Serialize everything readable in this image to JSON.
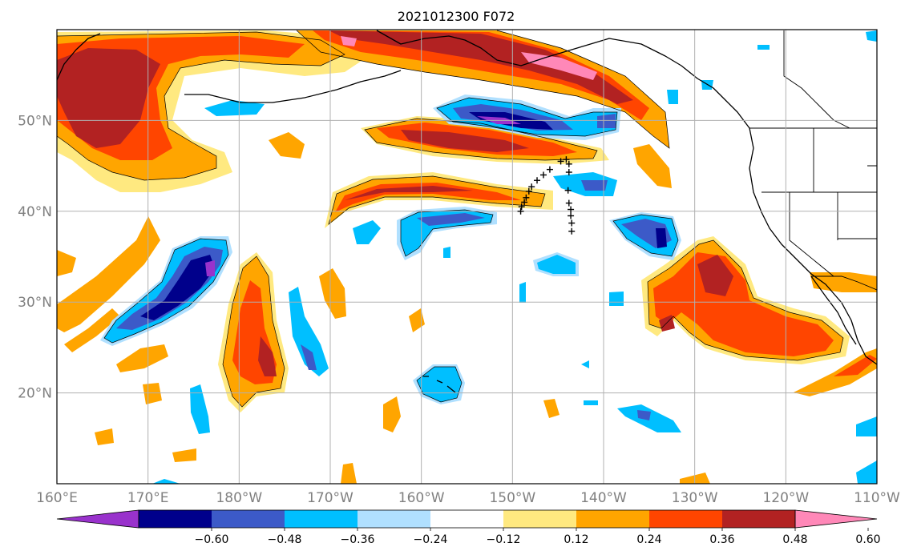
{
  "title": "2021012300 F072",
  "lat_labels": [
    {
      "lat": 50,
      "text": "50°N"
    },
    {
      "lat": 40,
      "text": "40°N"
    },
    {
      "lat": 30,
      "text": "30°N"
    },
    {
      "lat": 20,
      "text": "20°N"
    }
  ],
  "lon_labels": [
    {
      "lon": 160,
      "text": "160°E"
    },
    {
      "lon": 170,
      "text": "170°E"
    },
    {
      "lon": 180,
      "text": "180°W"
    },
    {
      "lon": 190,
      "text": "170°W"
    },
    {
      "lon": 200,
      "text": "160°W"
    },
    {
      "lon": 210,
      "text": "150°W"
    },
    {
      "lon": 220,
      "text": "140°W"
    },
    {
      "lon": 230,
      "text": "130°W"
    },
    {
      "lon": 240,
      "text": "120°W"
    },
    {
      "lon": 250,
      "text": "110°W"
    }
  ],
  "map_extent": {
    "lon_min": 160,
    "lon_max": 250,
    "lat_min": 10,
    "lat_max": 60
  },
  "colorbar": {
    "levels": [
      "−0.60",
      "−0.48",
      "−0.36",
      "−0.24",
      "−0.12",
      "0.12",
      "0.24",
      "0.36",
      "0.48",
      "0.60"
    ],
    "colors": [
      "#9932cc",
      "#00008b",
      "#3c5ac8",
      "#00bfff",
      "#b0e0ff",
      "#ffffff",
      "#ffe980",
      "#ffa500",
      "#ff4500",
      "#b22222",
      "#ff88b8"
    ],
    "extend": "both"
  },
  "track_points": [
    [
      210.9,
      40.0
    ],
    [
      211.0,
      40.5
    ],
    [
      211.3,
      41.0
    ],
    [
      211.5,
      41.5
    ],
    [
      211.8,
      42.2
    ],
    [
      212.1,
      42.7
    ],
    [
      212.7,
      43.4
    ],
    [
      213.4,
      44.0
    ],
    [
      214.1,
      44.6
    ],
    [
      215.3,
      45.5
    ],
    [
      215.9,
      45.7
    ],
    [
      216.2,
      45.2
    ],
    [
      216.2,
      44.3
    ],
    [
      216.1,
      42.3
    ],
    [
      216.2,
      40.9
    ],
    [
      216.4,
      40.2
    ],
    [
      216.4,
      39.5
    ],
    [
      216.5,
      38.7
    ],
    [
      216.5,
      37.8
    ]
  ],
  "features": {
    "ocean_color": "#ffffff",
    "grid": true
  }
}
